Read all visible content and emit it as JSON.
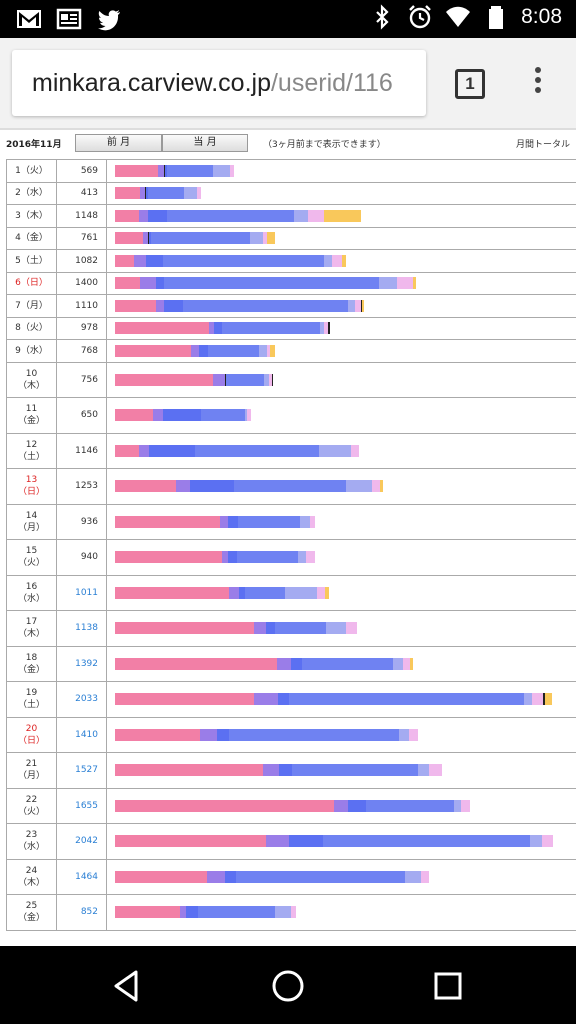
{
  "status_bar": {
    "time": "8:08",
    "left_icons": [
      "gmail-icon",
      "news-icon",
      "twitter-icon"
    ],
    "right_icons": [
      "bluetooth-icon",
      "alarm-icon",
      "wifi-icon",
      "battery-icon"
    ]
  },
  "browser": {
    "url_host": "minkara.carview.co.jp",
    "url_path": "/userid/116",
    "tab_count": "1"
  },
  "page": {
    "month_label": "2016年11月",
    "prev_label": "前 月",
    "current_label": "当 月",
    "note": "（3ヶ月前まで表示できます）",
    "total_label": "月間トータル"
  },
  "colors": {
    "pink": "#f27fa6",
    "violet": "#9a7de8",
    "blue": "#5b70f2",
    "mid": "#6f82f2",
    "light": "#a4abf1",
    "lavender": "#f0b8ec",
    "yellow": "#f9c85b",
    "darkline": "#222"
  },
  "rows": [
    {
      "day": "1（火）",
      "count": "569",
      "red": false,
      "link": false,
      "tall": false,
      "segs": [
        [
          "pink",
          43
        ],
        [
          "violet",
          6
        ],
        [
          "darkline",
          1
        ],
        [
          "blue",
          2
        ],
        [
          "mid",
          46
        ],
        [
          "light",
          17
        ],
        [
          "lavender",
          4
        ]
      ]
    },
    {
      "day": "2（水）",
      "count": "413",
      "red": false,
      "link": false,
      "tall": false,
      "segs": [
        [
          "pink",
          25
        ],
        [
          "violet",
          5
        ],
        [
          "darkline",
          1
        ],
        [
          "blue",
          2
        ],
        [
          "mid",
          36
        ],
        [
          "light",
          13
        ],
        [
          "lavender",
          4
        ]
      ]
    },
    {
      "day": "3（木）",
      "count": "1148",
      "red": false,
      "link": false,
      "tall": false,
      "segs": [
        [
          "pink",
          24
        ],
        [
          "violet",
          9
        ],
        [
          "blue",
          19
        ],
        [
          "mid",
          127
        ],
        [
          "light",
          14
        ],
        [
          "lavender",
          16
        ],
        [
          "yellow",
          37
        ]
      ]
    },
    {
      "day": "4（金）",
      "count": "761",
      "red": false,
      "link": false,
      "tall": false,
      "segs": [
        [
          "pink",
          28
        ],
        [
          "violet",
          5
        ],
        [
          "darkline",
          1
        ],
        [
          "blue",
          2
        ],
        [
          "mid",
          99
        ],
        [
          "light",
          13
        ],
        [
          "lavender",
          4
        ],
        [
          "yellow",
          8
        ]
      ]
    },
    {
      "day": "5（土）",
      "count": "1082",
      "red": false,
      "link": false,
      "tall": false,
      "segs": [
        [
          "pink",
          19
        ],
        [
          "violet",
          12
        ],
        [
          "blue",
          17
        ],
        [
          "mid",
          161
        ],
        [
          "light",
          8
        ],
        [
          "lavender",
          10
        ],
        [
          "yellow",
          4
        ]
      ]
    },
    {
      "day": "6（日）",
      "count": "1400",
      "red": true,
      "link": false,
      "tall": false,
      "segs": [
        [
          "pink",
          25
        ],
        [
          "violet",
          16
        ],
        [
          "blue",
          8
        ],
        [
          "mid",
          215
        ],
        [
          "light",
          18
        ],
        [
          "lavender",
          16
        ],
        [
          "yellow",
          3
        ]
      ]
    },
    {
      "day": "7（月）",
      "count": "1110",
      "red": false,
      "link": false,
      "tall": false,
      "segs": [
        [
          "pink",
          41
        ],
        [
          "violet",
          8
        ],
        [
          "blue",
          19
        ],
        [
          "mid",
          165
        ],
        [
          "light",
          7
        ],
        [
          "lavender",
          6
        ],
        [
          "darkline",
          1
        ],
        [
          "yellow",
          2
        ]
      ]
    },
    {
      "day": "8（火）",
      "count": "978",
      "red": false,
      "link": false,
      "tall": false,
      "segs": [
        [
          "pink",
          94
        ],
        [
          "violet",
          5
        ],
        [
          "blue",
          8
        ],
        [
          "mid",
          98
        ],
        [
          "light",
          4
        ],
        [
          "lavender",
          4
        ],
        [
          "darkline",
          2
        ]
      ]
    },
    {
      "day": "9（水）",
      "count": "768",
      "red": false,
      "link": false,
      "tall": false,
      "segs": [
        [
          "pink",
          76
        ],
        [
          "violet",
          8
        ],
        [
          "blue",
          9
        ],
        [
          "mid",
          51
        ],
        [
          "light",
          8
        ],
        [
          "lavender",
          3
        ],
        [
          "yellow",
          5
        ]
      ]
    },
    {
      "day": "10（木）",
      "count": "756",
      "red": false,
      "link": false,
      "tall": true,
      "segs": [
        [
          "pink",
          98
        ],
        [
          "violet",
          12
        ],
        [
          "darkline",
          1
        ],
        [
          "mid",
          38
        ],
        [
          "light",
          5
        ],
        [
          "lavender",
          3
        ],
        [
          "darkline",
          1
        ]
      ]
    },
    {
      "day": "11（金）",
      "count": "650",
      "red": false,
      "link": false,
      "tall": true,
      "segs": [
        [
          "pink",
          38
        ],
        [
          "violet",
          10
        ],
        [
          "blue",
          38
        ],
        [
          "mid",
          44
        ],
        [
          "light",
          2
        ],
        [
          "lavender",
          4
        ]
      ]
    },
    {
      "day": "12（土）",
      "count": "1146",
      "red": false,
      "link": false,
      "tall": true,
      "segs": [
        [
          "pink",
          24
        ],
        [
          "violet",
          10
        ],
        [
          "blue",
          46
        ],
        [
          "mid",
          124
        ],
        [
          "light",
          32
        ],
        [
          "lavender",
          8
        ]
      ]
    },
    {
      "day": "13（日）",
      "count": "1253",
      "red": true,
      "link": false,
      "tall": true,
      "segs": [
        [
          "pink",
          61
        ],
        [
          "violet",
          14
        ],
        [
          "blue",
          44
        ],
        [
          "mid",
          112
        ],
        [
          "light",
          26
        ],
        [
          "lavender",
          8
        ],
        [
          "yellow",
          3
        ]
      ]
    },
    {
      "day": "14（月）",
      "count": "936",
      "red": false,
      "link": false,
      "tall": true,
      "segs": [
        [
          "pink",
          105
        ],
        [
          "violet",
          8
        ],
        [
          "blue",
          10
        ],
        [
          "mid",
          62
        ],
        [
          "light",
          10
        ],
        [
          "lavender",
          5
        ]
      ]
    },
    {
      "day": "15（火）",
      "count": "940",
      "red": false,
      "link": false,
      "tall": true,
      "segs": [
        [
          "pink",
          107
        ],
        [
          "violet",
          6
        ],
        [
          "blue",
          9
        ],
        [
          "mid",
          61
        ],
        [
          "light",
          8
        ],
        [
          "lavender",
          9
        ]
      ]
    },
    {
      "day": "16（水）",
      "count": "1011",
      "red": false,
      "link": true,
      "tall": true,
      "segs": [
        [
          "pink",
          114
        ],
        [
          "violet",
          10
        ],
        [
          "blue",
          6
        ],
        [
          "mid",
          40
        ],
        [
          "light",
          32
        ],
        [
          "lavender",
          8
        ],
        [
          "yellow",
          4
        ]
      ]
    },
    {
      "day": "17（木）",
      "count": "1138",
      "red": false,
      "link": true,
      "tall": true,
      "segs": [
        [
          "pink",
          139
        ],
        [
          "violet",
          12
        ],
        [
          "blue",
          9
        ],
        [
          "mid",
          51
        ],
        [
          "light",
          20
        ],
        [
          "lavender",
          11
        ]
      ]
    },
    {
      "day": "18（金）",
      "count": "1392",
      "red": false,
      "link": true,
      "tall": true,
      "segs": [
        [
          "pink",
          162
        ],
        [
          "violet",
          14
        ],
        [
          "blue",
          11
        ],
        [
          "mid",
          91
        ],
        [
          "light",
          10
        ],
        [
          "lavender",
          7
        ],
        [
          "yellow",
          3
        ]
      ]
    },
    {
      "day": "19（土）",
      "count": "2033",
      "red": false,
      "link": true,
      "tall": true,
      "segs": [
        [
          "pink",
          139
        ],
        [
          "violet",
          24
        ],
        [
          "blue",
          11
        ],
        [
          "mid",
          235
        ],
        [
          "light",
          8
        ],
        [
          "lavender",
          11
        ],
        [
          "darkline",
          2
        ],
        [
          "yellow",
          7
        ]
      ]
    },
    {
      "day": "20（日）",
      "count": "1410",
      "red": true,
      "link": true,
      "tall": true,
      "segs": [
        [
          "pink",
          85
        ],
        [
          "violet",
          17
        ],
        [
          "blue",
          12
        ],
        [
          "mid",
          170
        ],
        [
          "light",
          10
        ],
        [
          "lavender",
          9
        ]
      ]
    },
    {
      "day": "21（月）",
      "count": "1527",
      "red": false,
      "link": true,
      "tall": true,
      "segs": [
        [
          "pink",
          148
        ],
        [
          "violet",
          16
        ],
        [
          "blue",
          13
        ],
        [
          "mid",
          126
        ],
        [
          "light",
          11
        ],
        [
          "lavender",
          13
        ]
      ]
    },
    {
      "day": "22（火）",
      "count": "1655",
      "red": false,
      "link": true,
      "tall": true,
      "segs": [
        [
          "pink",
          219
        ],
        [
          "violet",
          14
        ],
        [
          "blue",
          18
        ],
        [
          "mid",
          88
        ],
        [
          "light",
          7
        ],
        [
          "lavender",
          9
        ]
      ]
    },
    {
      "day": "23（水）",
      "count": "2042",
      "red": false,
      "link": true,
      "tall": true,
      "segs": [
        [
          "pink",
          151
        ],
        [
          "violet",
          23
        ],
        [
          "blue",
          34
        ],
        [
          "mid",
          207
        ],
        [
          "light",
          12
        ],
        [
          "lavender",
          11
        ]
      ]
    },
    {
      "day": "24（木）",
      "count": "1464",
      "red": false,
      "link": true,
      "tall": true,
      "segs": [
        [
          "pink",
          92
        ],
        [
          "violet",
          18
        ],
        [
          "blue",
          11
        ],
        [
          "mid",
          169
        ],
        [
          "light",
          16
        ],
        [
          "lavender",
          8
        ]
      ]
    },
    {
      "day": "25（金）",
      "count": "852",
      "red": false,
      "link": true,
      "tall": true,
      "segs": [
        [
          "pink",
          65
        ],
        [
          "violet",
          6
        ],
        [
          "blue",
          12
        ],
        [
          "mid",
          77
        ],
        [
          "light",
          16
        ],
        [
          "lavender",
          5
        ]
      ]
    }
  ]
}
